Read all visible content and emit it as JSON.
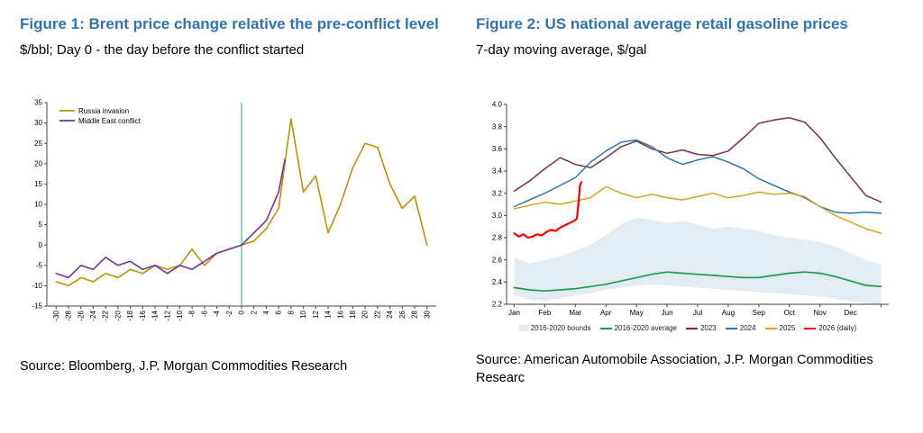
{
  "accent_color": "#2e74b5",
  "figure1": {
    "title": "Figure 1: Brent price change relative the pre-conflict level",
    "subtitle": "$/bbl; Day 0 - the day before the conflict started",
    "source": "Source: Bloomberg, J.P. Morgan Commodities Research"
  },
  "figure2": {
    "title": "Figure 2: US national average retail gasoline prices",
    "subtitle": "7-day moving average, $/gal",
    "source": "Source: American Automobile Association, J.P. Morgan Commodities Researc"
  },
  "chart_data": [
    {
      "id": "chart1",
      "type": "line",
      "title": "Brent price change relative the pre-conflict level",
      "xlabel": "",
      "ylabel": "$/bbl",
      "xlim": [
        -31.5,
        31.5
      ],
      "ylim": [
        -15,
        35
      ],
      "grid": false,
      "legend": "top-left",
      "margins": {
        "l": 30,
        "r": 8,
        "t": 6,
        "b": 36
      },
      "tick_font": 8,
      "x_tick_rotate": true,
      "x_tick_pos": [
        -30,
        -28,
        -26,
        -24,
        -22,
        -20,
        -18,
        -16,
        -14,
        -12,
        -10,
        -8,
        -6,
        -4,
        -2,
        0,
        2,
        4,
        6,
        8,
        10,
        12,
        14,
        16,
        18,
        20,
        22,
        24,
        26,
        28,
        30
      ],
      "x_ticks": [
        "-30",
        "-28",
        "-26",
        "-24",
        "-22",
        "-20",
        "-18",
        "-16",
        "-14",
        "-12",
        "-10",
        "-8",
        "-6",
        "-4",
        "-2",
        "0",
        "2",
        "4",
        "6",
        "8",
        "10",
        "12",
        "14",
        "16",
        "18",
        "20",
        "22",
        "24",
        "26",
        "28",
        "30"
      ],
      "y_tick_pos": [
        -15,
        -10,
        -5,
        0,
        5,
        10,
        15,
        20,
        25,
        30,
        35
      ],
      "y_ticks": [
        "-15",
        "-10",
        "-5",
        "0",
        "5",
        "10",
        "15",
        "20",
        "25",
        "30",
        "35"
      ],
      "vlines": [
        {
          "x": 0,
          "color": "#57c08a"
        }
      ],
      "series": [
        {
          "name": "Russia invasion",
          "color": "#bf9000",
          "width": 1.6,
          "x": [
            -30,
            -28,
            -26,
            -24,
            -22,
            -20,
            -18,
            -16,
            -14,
            -12,
            -10,
            -8,
            -6,
            -4,
            -2,
            0,
            2,
            4,
            6,
            8,
            10,
            12,
            14,
            16,
            18,
            20,
            22,
            24,
            26,
            28,
            30
          ],
          "y": [
            -9,
            -10,
            -8,
            -9,
            -7,
            -8,
            -6,
            -7,
            -5,
            -6,
            -5,
            -1,
            -5,
            -2,
            -1,
            0,
            1,
            4,
            9,
            31,
            13,
            17,
            3,
            10,
            19,
            25,
            24,
            15,
            9,
            12,
            0
          ]
        },
        {
          "name": "Middle East conflict",
          "color": "#6a35a0",
          "width": 1.6,
          "x": [
            -30,
            -28,
            -26,
            -24,
            -22,
            -20,
            -18,
            -16,
            -14,
            -12,
            -10,
            -8,
            -6,
            -4,
            -2,
            0,
            2,
            4,
            6,
            7
          ],
          "y": [
            -7,
            -8,
            -5,
            -6,
            -3,
            -5,
            -4,
            -6,
            -5,
            -7,
            -5,
            -6,
            -4,
            -2,
            -1,
            0,
            3,
            6,
            13,
            21
          ]
        }
      ]
    },
    {
      "id": "chart2",
      "type": "line",
      "title": "US national average retail gasoline prices",
      "xlabel": "",
      "ylabel": "$/gal",
      "xlim": [
        -0.25,
        12.25
      ],
      "ylim": [
        2.2,
        4.0
      ],
      "grid": false,
      "legend": "bottom",
      "margins": {
        "l": 34,
        "r": 12,
        "t": 8,
        "b": 20
      },
      "tick_font": 8,
      "x_tick_pos": [
        0,
        1,
        2,
        3,
        4,
        5,
        6,
        7,
        8,
        9,
        10,
        11,
        12
      ],
      "x_ticks": [
        "",
        "",
        "",
        "",
        "",
        "",
        "",
        "",
        "",
        "",
        "",
        "",
        ""
      ],
      "x_label_pos": [
        0,
        1,
        2,
        3,
        4,
        5,
        6,
        7,
        8,
        9,
        10,
        11
      ],
      "x_labels": [
        "Jan",
        "Feb",
        "Mar",
        "Apr",
        "May",
        "Jun",
        "Jul",
        "Aug",
        "Sep",
        "Oct",
        "Nov",
        "Dec"
      ],
      "y_tick_pos": [
        2.2,
        2.4,
        2.6,
        2.8,
        3.0,
        3.2,
        3.4,
        3.6,
        3.8,
        4.0
      ],
      "y_ticks": [
        "2.2",
        "2.4",
        "2.6",
        "2.8",
        "3.0",
        "3.2",
        "3.4",
        "3.6",
        "3.8",
        "4.0"
      ],
      "series": [
        {
          "name": "2016-2020 bounds",
          "kind": "area",
          "color": "#e3ebf3",
          "x": [
            0,
            0.5,
            1,
            1.5,
            2,
            2.5,
            3,
            3.5,
            4,
            4.5,
            5,
            5.5,
            6,
            6.5,
            7,
            7.5,
            8,
            8.5,
            9,
            9.5,
            10,
            10.5,
            11,
            11.5,
            12
          ],
          "upper": [
            2.62,
            2.57,
            2.6,
            2.63,
            2.68,
            2.74,
            2.82,
            2.92,
            2.98,
            2.96,
            2.93,
            2.95,
            2.92,
            2.88,
            2.9,
            2.88,
            2.86,
            2.82,
            2.8,
            2.78,
            2.76,
            2.72,
            2.66,
            2.6,
            2.56
          ],
          "lower": [
            2.28,
            2.24,
            2.23,
            2.25,
            2.28,
            2.3,
            2.33,
            2.35,
            2.37,
            2.38,
            2.37,
            2.36,
            2.35,
            2.34,
            2.33,
            2.32,
            2.31,
            2.3,
            2.29,
            2.28,
            2.27,
            2.25,
            2.23,
            2.21,
            2.2
          ]
        },
        {
          "name": "2016-2020 average",
          "color": "#1aa04b",
          "width": 1.7,
          "x": [
            0,
            0.5,
            1,
            1.5,
            2,
            2.5,
            3,
            3.5,
            4,
            4.5,
            5,
            5.5,
            6,
            6.5,
            7,
            7.5,
            8,
            8.5,
            9,
            9.5,
            10,
            10.5,
            11,
            11.5,
            12
          ],
          "y": [
            2.35,
            2.33,
            2.32,
            2.33,
            2.34,
            2.36,
            2.38,
            2.41,
            2.44,
            2.47,
            2.49,
            2.48,
            2.47,
            2.46,
            2.45,
            2.44,
            2.44,
            2.46,
            2.48,
            2.49,
            2.48,
            2.45,
            2.41,
            2.37,
            2.36
          ]
        },
        {
          "name": "2023",
          "color": "#7b2d43",
          "width": 1.5,
          "x": [
            0,
            0.5,
            1,
            1.5,
            2,
            2.5,
            3,
            3.5,
            4,
            4.5,
            5,
            5.5,
            6,
            6.5,
            7,
            7.5,
            8,
            8.5,
            9,
            9.5,
            10,
            10.5,
            11,
            11.5,
            12
          ],
          "y": [
            3.22,
            3.31,
            3.42,
            3.52,
            3.46,
            3.43,
            3.52,
            3.62,
            3.67,
            3.6,
            3.56,
            3.59,
            3.55,
            3.54,
            3.58,
            3.7,
            3.83,
            3.86,
            3.88,
            3.84,
            3.7,
            3.52,
            3.35,
            3.18,
            3.12
          ]
        },
        {
          "name": "2024",
          "color": "#2e75b6",
          "width": 1.5,
          "x": [
            0,
            0.5,
            1,
            1.5,
            2,
            2.5,
            3,
            3.5,
            4,
            4.5,
            5,
            5.5,
            6,
            6.5,
            7,
            7.5,
            8,
            8.5,
            9,
            9.5,
            10,
            10.5,
            11,
            11.5,
            12
          ],
          "y": [
            3.08,
            3.14,
            3.2,
            3.27,
            3.34,
            3.48,
            3.58,
            3.66,
            3.68,
            3.62,
            3.52,
            3.46,
            3.5,
            3.53,
            3.48,
            3.42,
            3.33,
            3.27,
            3.21,
            3.16,
            3.08,
            3.03,
            3.02,
            3.03,
            3.02
          ]
        },
        {
          "name": "2025",
          "color": "#d9a420",
          "width": 1.5,
          "x": [
            0,
            0.5,
            1,
            1.5,
            2,
            2.5,
            3,
            3.5,
            4,
            4.5,
            5,
            5.5,
            6,
            6.5,
            7,
            7.5,
            8,
            8.5,
            9,
            9.5,
            10,
            10.5,
            11,
            11.5,
            12
          ],
          "y": [
            3.06,
            3.09,
            3.12,
            3.1,
            3.13,
            3.16,
            3.26,
            3.2,
            3.16,
            3.19,
            3.16,
            3.14,
            3.17,
            3.2,
            3.16,
            3.18,
            3.21,
            3.19,
            3.2,
            3.17,
            3.08,
            3.0,
            2.94,
            2.88,
            2.84
          ]
        },
        {
          "name": "2026 (daily)",
          "color": "#ff0000",
          "width": 2.2,
          "x": [
            0,
            0.15,
            0.3,
            0.45,
            0.6,
            0.75,
            0.9,
            1.05,
            1.2,
            1.35,
            1.5,
            1.65,
            1.8,
            1.95,
            2.05,
            2.1,
            2.15,
            2.2
          ],
          "y": [
            2.84,
            2.81,
            2.83,
            2.8,
            2.81,
            2.83,
            2.82,
            2.85,
            2.87,
            2.86,
            2.89,
            2.91,
            2.93,
            2.95,
            2.97,
            3.1,
            3.27,
            3.3
          ]
        }
      ]
    }
  ]
}
